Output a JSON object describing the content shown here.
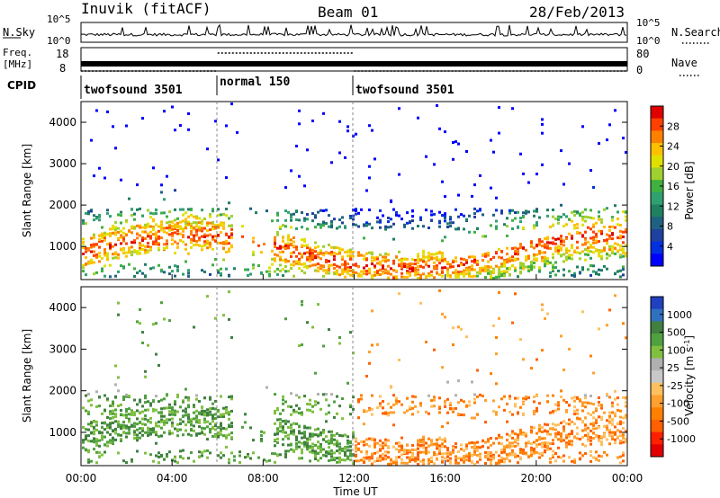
{
  "header": {
    "station": "Inuvik (fitACF)",
    "beam": "Beam 01",
    "date": "28/Feb/2013"
  },
  "chart_data": [
    {
      "type": "line",
      "panel": "noise",
      "left_label": "N.Sky",
      "right_label": "N.Search",
      "left_ticks": [
        "10^5",
        "10^0"
      ],
      "right_ticks": [
        "10^5",
        "10^0"
      ],
      "scale": "log"
    },
    {
      "type": "line",
      "panel": "frequency",
      "left_label_1": "Freq.",
      "left_label_2": "[MHz]",
      "right_label": "Nave",
      "left_ticks": [
        18,
        8
      ],
      "right_ticks": [
        80,
        0
      ],
      "ylim_freq": [
        8,
        18
      ],
      "ylim_nave": [
        0,
        80
      ],
      "freq_MHz": 10.4,
      "nave_segments": [
        {
          "start_hour": 0,
          "end_hour": 6,
          "value": 0
        },
        {
          "start_hour": 6,
          "end_hour": 12,
          "value": 80
        },
        {
          "start_hour": 12,
          "end_hour": 24,
          "value": 0
        }
      ]
    },
    {
      "type": "table",
      "panel": "cpid",
      "label": "CPID",
      "segments": [
        {
          "start_hour": 0,
          "end_hour": 6,
          "label": "twofsound 3501"
        },
        {
          "start_hour": 6,
          "end_hour": 12,
          "label": "normal 150"
        },
        {
          "start_hour": 12,
          "end_hour": 24,
          "label": "twofsound 3501"
        }
      ]
    },
    {
      "type": "heatmap",
      "panel": "power",
      "ylabel": "Slant Range [km]",
      "yticks": [
        1000,
        2000,
        3000,
        4000
      ],
      "ylim": [
        200,
        4500
      ],
      "colorbar_label": "Power [dB]",
      "colorbar_ticks": [
        "28",
        "24",
        "20",
        "16",
        "12",
        "8",
        "4"
      ],
      "colorbar_colors": [
        "#e00000",
        "#ff4000",
        "#ff8000",
        "#ffc000",
        "#e0e000",
        "#a0d030",
        "#40b040",
        "#30a070",
        "#208060",
        "#206080",
        "#2040a0",
        "#0030e0",
        "#0000ff"
      ],
      "xlim_hours": [
        0,
        24
      ]
    },
    {
      "type": "heatmap",
      "panel": "velocity",
      "ylabel": "Slant Range [km]",
      "yticks": [
        1000,
        2000,
        3000,
        4000
      ],
      "ylim": [
        200,
        4500
      ],
      "colorbar_label": "Velocity [m s^-1]",
      "colorbar_ticks": [
        "1000",
        "500",
        "100",
        "25",
        "-25",
        "-100",
        "-500",
        "-1000"
      ],
      "colorbar_colors": [
        "#2040c0",
        "#3070c0",
        "#408040",
        "#50a040",
        "#80c040",
        "#b0b0b0",
        "#c8c8c8",
        "#ffc060",
        "#ffa030",
        "#ff8000",
        "#ff6000",
        "#ff2000",
        "#e00000"
      ],
      "xlabel": "Time UT",
      "xticks": [
        "00:00",
        "04:00",
        "08:00",
        "12:00",
        "16:00",
        "20:00",
        "00:00"
      ],
      "xlim_hours": [
        0,
        24
      ]
    }
  ]
}
